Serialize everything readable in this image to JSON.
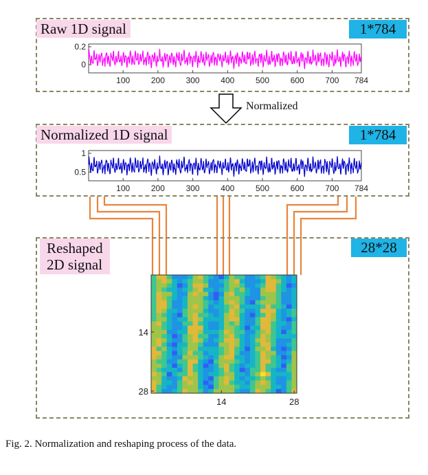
{
  "panels": {
    "raw": {
      "label": "Raw 1D signal",
      "badge": "1*784"
    },
    "normalized": {
      "label": "Normalized 1D signal",
      "badge": "1*784"
    },
    "reshaped": {
      "label_line1": "Reshaped",
      "label_line2": "2D signal",
      "badge": "28*28"
    }
  },
  "arrow": {
    "label": "Normalized"
  },
  "caption": "Fig. 2.   Normalization and reshaping process of the data.",
  "colors": {
    "raw_signal": "#ff00ff",
    "normalized_signal": "#0000cc",
    "connector": "#e8843a",
    "label_bg": "#f9d7ea",
    "badge_bg": "#1fb3e6"
  },
  "chart_data": [
    {
      "type": "line",
      "series": [
        {
          "color": "#ff00ff",
          "samples": 784
        }
      ],
      "x_ticks": [
        "100",
        "200",
        "300",
        "400",
        "500",
        "600",
        "700",
        "784"
      ],
      "y_ticks": [
        "0.2",
        "0"
      ],
      "xlim": [
        1,
        784
      ],
      "ylim": [
        -0.1,
        0.2
      ]
    },
    {
      "type": "line",
      "series": [
        {
          "color": "#0000cc",
          "samples": 784
        }
      ],
      "x_ticks": [
        "100",
        "200",
        "300",
        "400",
        "500",
        "600",
        "700",
        "784"
      ],
      "y_ticks": [
        "1",
        "0.5"
      ],
      "xlim": [
        1,
        784
      ],
      "ylim": [
        0,
        1
      ]
    },
    {
      "type": "heatmap",
      "rows": 28,
      "cols": 28,
      "x_ticks": [
        "14",
        "28"
      ],
      "y_ticks": [
        "14",
        "28"
      ]
    }
  ]
}
